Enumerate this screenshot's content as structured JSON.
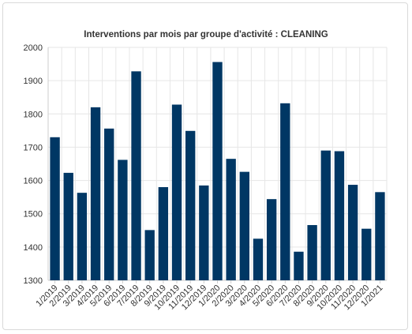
{
  "chart_data": {
    "type": "bar",
    "title": "Interventions par mois par groupe d'activité : CLEANING",
    "xlabel": "",
    "ylabel": "",
    "ylim": [
      1300,
      2000
    ],
    "yticks": [
      1300,
      1400,
      1500,
      1600,
      1700,
      1800,
      1900,
      2000
    ],
    "grid": true,
    "legend": "none",
    "bar_color": "#003764",
    "categories": [
      "1/2019",
      "2/2019",
      "3/2019",
      "4/2019",
      "5/2019",
      "6/2019",
      "7/2019",
      "8/2019",
      "9/2019",
      "10/2019",
      "11/2019",
      "12/2019",
      "1/2020",
      "2/2020",
      "3/2020",
      "4/2020",
      "5/2020",
      "6/2020",
      "7/2020",
      "8/2020",
      "9/2020",
      "10/2020",
      "11/2020",
      "12/2020",
      "1/2021"
    ],
    "values": [
      1730,
      1623,
      1563,
      1820,
      1756,
      1662,
      1928,
      1451,
      1580,
      1828,
      1749,
      1585,
      1956,
      1665,
      1626,
      1425,
      1544,
      1832,
      1386,
      1466,
      1690,
      1688,
      1587,
      1455,
      1565
    ]
  }
}
